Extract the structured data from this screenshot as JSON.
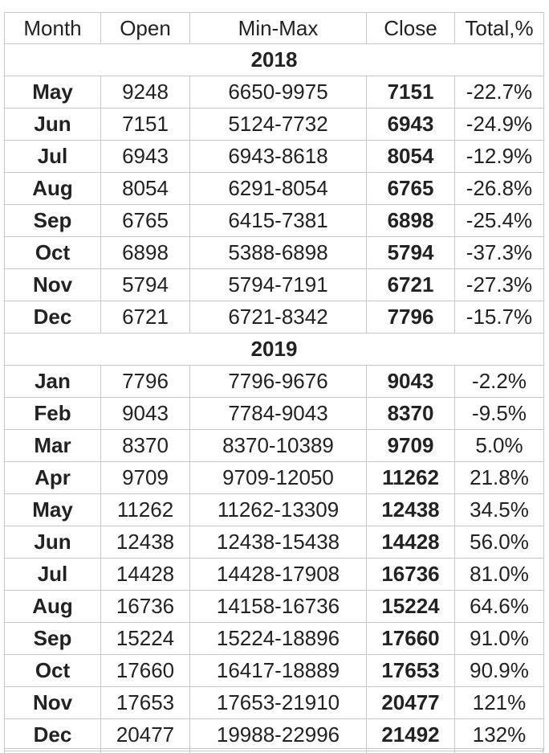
{
  "headers": [
    "Month",
    "Open",
    "Min-Max",
    "Close",
    "Total,%"
  ],
  "groups": [
    {
      "year": "2018",
      "rows": [
        {
          "month": "May",
          "open": "9248",
          "minmax": "6650-9975",
          "close": "7151",
          "total": "-22.7%"
        },
        {
          "month": "Jun",
          "open": "7151",
          "minmax": "5124-7732",
          "close": "6943",
          "total": "-24.9%"
        },
        {
          "month": "Jul",
          "open": "6943",
          "minmax": "6943-8618",
          "close": "8054",
          "total": "-12.9%"
        },
        {
          "month": "Aug",
          "open": "8054",
          "minmax": "6291-8054",
          "close": "6765",
          "total": "-26.8%"
        },
        {
          "month": "Sep",
          "open": "6765",
          "minmax": "6415-7381",
          "close": "6898",
          "total": "-25.4%"
        },
        {
          "month": "Oct",
          "open": "6898",
          "minmax": "5388-6898",
          "close": "5794",
          "total": "-37.3%"
        },
        {
          "month": "Nov",
          "open": "5794",
          "minmax": "5794-7191",
          "close": "6721",
          "total": "-27.3%"
        },
        {
          "month": "Dec",
          "open": "6721",
          "minmax": "6721-8342",
          "close": "7796",
          "total": "-15.7%"
        }
      ]
    },
    {
      "year": "2019",
      "rows": [
        {
          "month": "Jan",
          "open": "7796",
          "minmax": "7796-9676",
          "close": "9043",
          "total": "-2.2%"
        },
        {
          "month": "Feb",
          "open": "9043",
          "minmax": "7784-9043",
          "close": "8370",
          "total": "-9.5%"
        },
        {
          "month": "Mar",
          "open": "8370",
          "minmax": "8370-10389",
          "close": "9709",
          "total": "5.0%"
        },
        {
          "month": "Apr",
          "open": "9709",
          "minmax": "9709-12050",
          "close": "11262",
          "total": "21.8%"
        },
        {
          "month": "May",
          "open": "11262",
          "minmax": "11262-13309",
          "close": "12438",
          "total": "34.5%"
        },
        {
          "month": "Jun",
          "open": "12438",
          "minmax": "12438-15438",
          "close": "14428",
          "total": "56.0%"
        },
        {
          "month": "Jul",
          "open": "14428",
          "minmax": "14428-17908",
          "close": "16736",
          "total": "81.0%"
        },
        {
          "month": "Aug",
          "open": "16736",
          "minmax": "14158-16736",
          "close": "15224",
          "total": "64.6%"
        },
        {
          "month": "Sep",
          "open": "15224",
          "minmax": "15224-18896",
          "close": "17660",
          "total": "91.0%"
        },
        {
          "month": "Oct",
          "open": "17660",
          "minmax": "16417-18889",
          "close": "17653",
          "total": "90.9%"
        },
        {
          "month": "Nov",
          "open": "17653",
          "minmax": "17653-21910",
          "close": "20477",
          "total": "121%"
        },
        {
          "month": "Dec",
          "open": "20477",
          "minmax": "19988-22996",
          "close": "21492",
          "total": "132%"
        }
      ]
    }
  ]
}
